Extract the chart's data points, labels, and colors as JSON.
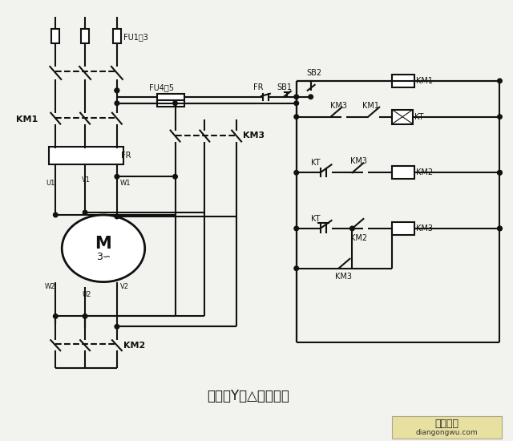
{
  "title": "全自动Y－△减压启动",
  "bg_color": "#f2f2ee",
  "line_color": "#111111",
  "watermark_text1": "电工之屋",
  "watermark_text2": "diangongwu.com",
  "watermark_bg": "#e8e0a0",
  "fig_width": 6.4,
  "fig_height": 5.5,
  "dpi": 100
}
